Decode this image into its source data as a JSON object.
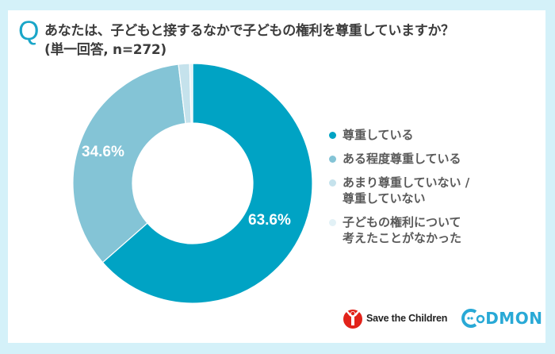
{
  "header": {
    "q_mark": "Q",
    "title_line1": "あなたは、子どもと接するなかで子どもの権利を尊重していますか？",
    "title_line2": "(単一回答, n=272)"
  },
  "chart_data": {
    "type": "pie",
    "subtype": "donut",
    "title": "あなたは、子どもと接するなかで子どもの権利を尊重していますか？",
    "subtitle": "(単一回答, n=272)",
    "n": 272,
    "categories": [
      "尊重している",
      "ある程度尊重している",
      "あまり尊重していない / 尊重していない",
      "子どもの権利について考えたことがなかった"
    ],
    "values": [
      63.6,
      34.6,
      1.5,
      0.4
    ],
    "value_labels": [
      "63.6%",
      "34.6%",
      "",
      ""
    ],
    "colors": [
      "#00a3c4",
      "#84c4d6",
      "#c5e2ec",
      "#e2f1f6"
    ],
    "legend_position": "right",
    "start_angle": "12 o'clock",
    "direction": "clockwise"
  },
  "labels": {
    "slice0": "63.6%",
    "slice1": "34.6%"
  },
  "legend": {
    "items": [
      {
        "line1": "尊重している",
        "line2": "",
        "color": "#00a3c4"
      },
      {
        "line1": "ある程度尊重している",
        "line2": "",
        "color": "#84c4d6"
      },
      {
        "line1": "あまり尊重していない /",
        "line2": "尊重していない",
        "color": "#c5e2ec"
      },
      {
        "line1": "子どもの権利について",
        "line2": "考えたことがなかった",
        "color": "#e2f1f6"
      }
    ]
  },
  "footer": {
    "save_the_children": "Save the Children",
    "codmon": "CoDMON"
  }
}
